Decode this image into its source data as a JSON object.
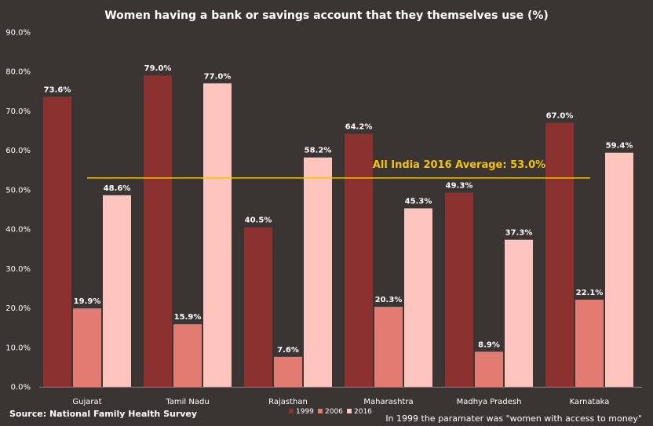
{
  "chart_data": {
    "type": "bar",
    "title": "Women having a bank or savings account that they themselves use (%)",
    "categories": [
      "Gujarat",
      "Tamil Nadu",
      "Rajasthan",
      "Maharashtra",
      "Madhya Pradesh",
      "Karnataka"
    ],
    "series": [
      {
        "name": "1999",
        "color": "#8b3130",
        "values": [
          73.6,
          79.0,
          40.5,
          64.2,
          49.3,
          67.0
        ],
        "labels": [
          "73.6%",
          "79.0%",
          "40.5%",
          "64.2%",
          "49.3%",
          "67.0%"
        ]
      },
      {
        "name": "2006",
        "color": "#e27b72",
        "values": [
          19.9,
          15.9,
          7.6,
          20.3,
          8.9,
          22.1
        ],
        "labels": [
          "19.9%",
          "15.9%",
          "7.6%",
          "20.3%",
          "8.9%",
          "22.1%"
        ]
      },
      {
        "name": "2016",
        "color": "#fdc5be",
        "values": [
          48.6,
          77.0,
          58.2,
          45.3,
          37.3,
          59.4
        ],
        "labels": [
          "48.6%",
          "77.0%",
          "58.2%",
          "45.3%",
          "37.3%",
          "59.4%"
        ]
      }
    ],
    "ylim": [
      0,
      90
    ],
    "yticks": [
      0,
      10,
      20,
      30,
      40,
      50,
      60,
      70,
      80,
      90
    ],
    "ytick_labels": [
      "0.0%",
      "10.0%",
      "20.0%",
      "30.0%",
      "40.0%",
      "50.0%",
      "60.0%",
      "70.0%",
      "80.0%",
      "90.0%"
    ],
    "grid": false,
    "legend_position": "bottom",
    "reference_line": {
      "value": 53.0,
      "label": "All India 2016 Average: 53.0%",
      "color": "#f5c30a"
    },
    "source": "Source:  National Family Health Survey",
    "note": "In 1999 the paramater was \"women with access to money\""
  }
}
